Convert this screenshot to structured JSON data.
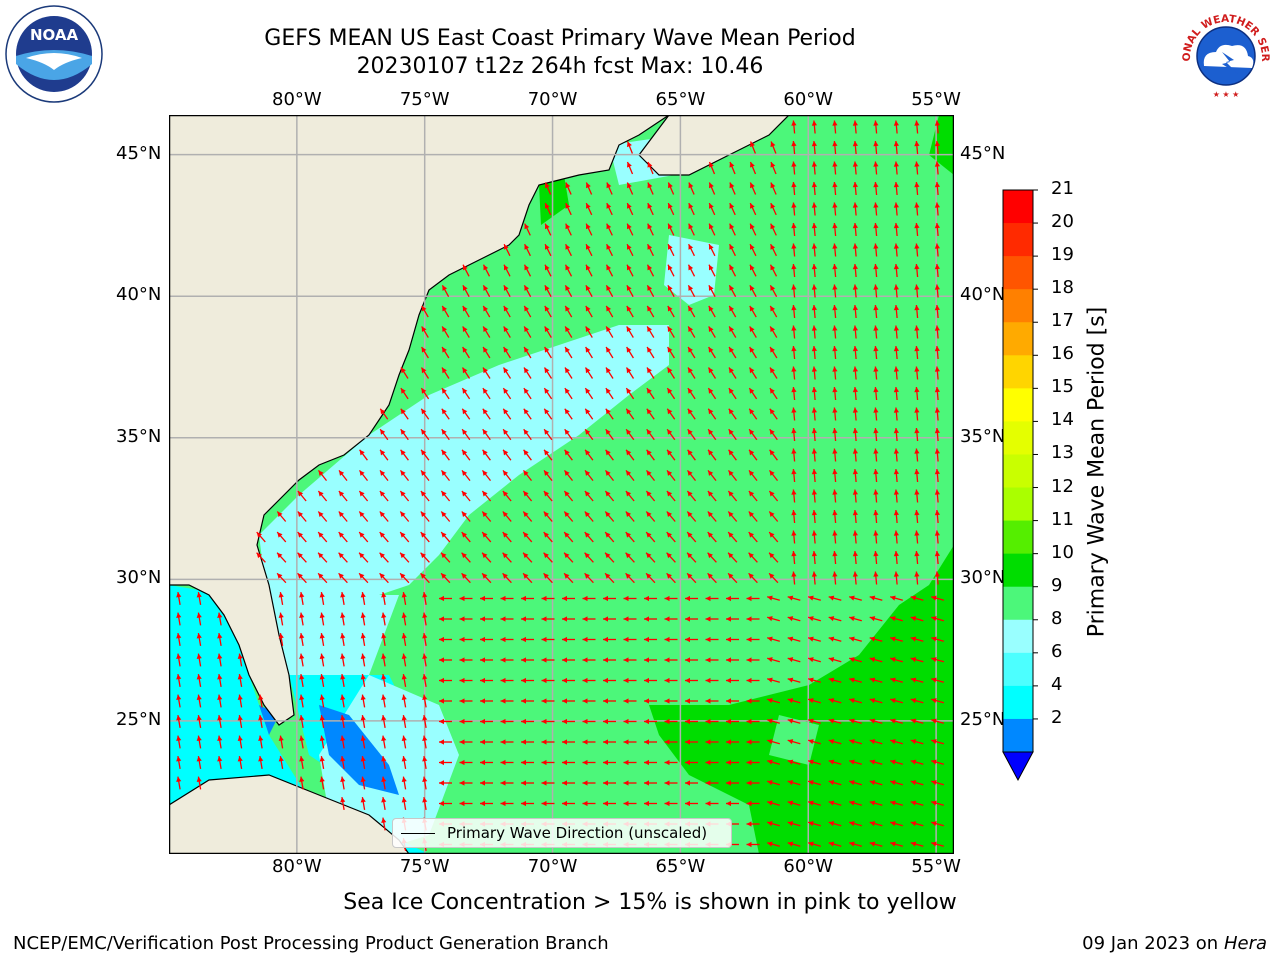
{
  "title": {
    "line1": "GEFS MEAN US East Coast Primary Wave Mean Period",
    "line2": "20230107 t12z 264h fcst   Max: 10.46"
  },
  "logos": {
    "left": {
      "name": "noaa-logo",
      "text": "NOAA",
      "ring": "NATIONAL OCEANIC AND ATMOSPHERIC ADMINISTRATION · U.S. DEPARTMENT OF COMMERCE"
    },
    "right": {
      "name": "nws-logo",
      "ring": "NATIONAL WEATHER SERVICE"
    }
  },
  "map": {
    "lon_labels": [
      "80°W",
      "75°W",
      "70°W",
      "65°W",
      "60°W",
      "55°W"
    ],
    "lat_labels": [
      "45°N",
      "40°N",
      "35°N",
      "30°N",
      "25°N"
    ],
    "lon_values": [
      -80,
      -75,
      -70,
      -65,
      -60,
      -55
    ],
    "lat_values": [
      45,
      40,
      35,
      30,
      25
    ],
    "extent": {
      "lon": [
        -85,
        -54.3
      ],
      "lat": [
        20.3,
        46.4
      ]
    },
    "colors": {
      "land": "#efecdc",
      "grid": "#b0b0b0",
      "arrow": "#ff0000",
      "coast": "#000000"
    },
    "legend_label": "Primary Wave Direction (unscaled)"
  },
  "colorbar": {
    "label": "Primary Wave Mean Period [s]",
    "ticks": [
      "21",
      "20",
      "19",
      "18",
      "17",
      "16",
      "15",
      "14",
      "13",
      "12",
      "11",
      "10",
      "9",
      "8",
      "6",
      "4",
      "2"
    ],
    "colors_top_to_bottom": [
      "#ff0000",
      "#ff2a00",
      "#ff5500",
      "#ff8000",
      "#ffaa00",
      "#ffd500",
      "#ffff00",
      "#e4ff00",
      "#c9ff00",
      "#aaff00",
      "#55ee00",
      "#00dd00",
      "#4cf77a",
      "#99ffff",
      "#4cffff",
      "#00ffff",
      "#0088ff"
    ],
    "under_color": "#0000ff"
  },
  "note": "Sea Ice Concentration > 15% is shown in pink to yellow",
  "footer": {
    "left": "NCEP/EMC/Verification Post Processing Product Generation Branch",
    "date": "09 Jan 2023 on ",
    "host": "Hera"
  }
}
